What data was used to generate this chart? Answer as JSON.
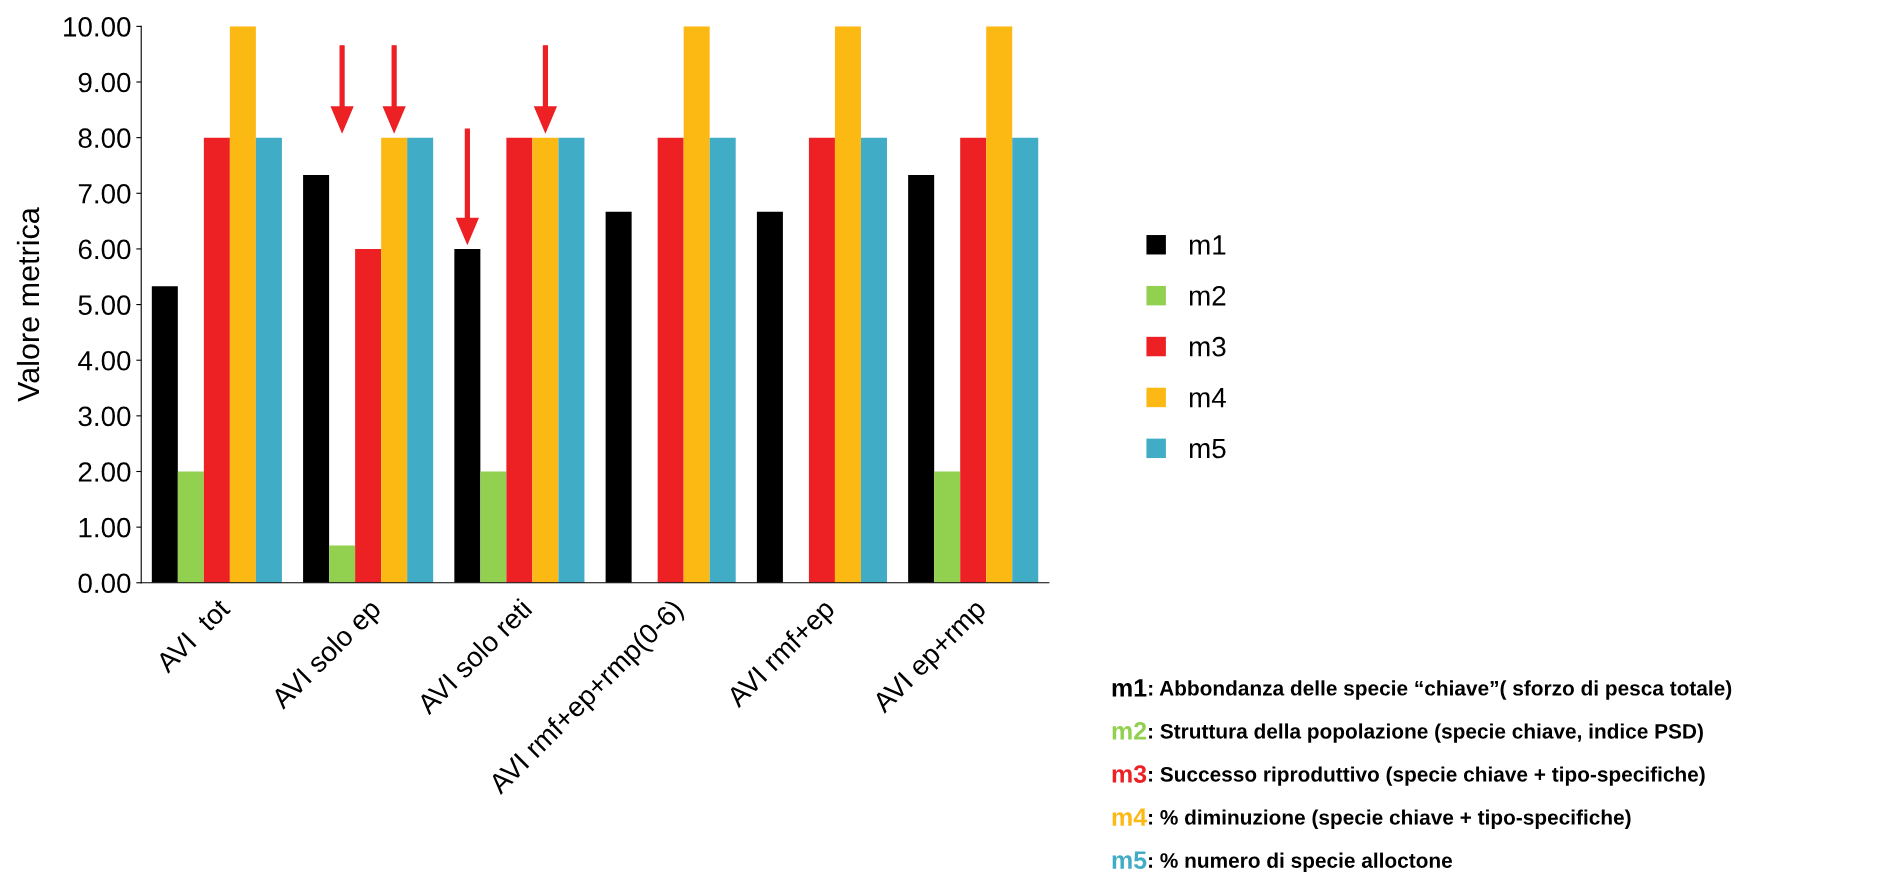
{
  "chart_data": {
    "type": "bar",
    "ylabel": "Valore metrica",
    "categories": [
      "AVI  tot",
      "AVI solo ep",
      "AVI solo reti",
      "AVI rmf+ep+rmp(0-6)",
      "AVI rmf+ep",
      "AVI ep+rmp"
    ],
    "series": [
      {
        "name": "m1",
        "color": "#000000",
        "values": [
          5.33,
          7.33,
          6.0,
          6.67,
          6.67,
          7.33
        ]
      },
      {
        "name": "m2",
        "color": "#92d050",
        "values": [
          2.0,
          0.67,
          2.0,
          0,
          0,
          2.0
        ]
      },
      {
        "name": "m3",
        "color": "#ed2024",
        "values": [
          8,
          6,
          8,
          8,
          8,
          8
        ]
      },
      {
        "name": "m4",
        "color": "#fdb913",
        "values": [
          10,
          8,
          8,
          10,
          10,
          10
        ]
      },
      {
        "name": "m5",
        "color": "#40acc6",
        "values": [
          8,
          8,
          8,
          8,
          8,
          8
        ]
      }
    ],
    "ylim": [
      0,
      10
    ],
    "yticks": [
      {
        "value": 0,
        "label": "0.00"
      },
      {
        "value": 1,
        "label": "1.00"
      },
      {
        "value": 2,
        "label": "2.00"
      },
      {
        "value": 3,
        "label": "3.00"
      },
      {
        "value": 4,
        "label": "4.00"
      },
      {
        "value": 5,
        "label": "5.00"
      },
      {
        "value": 6,
        "label": "6.00"
      },
      {
        "value": 7,
        "label": "7.00"
      },
      {
        "value": 8,
        "label": "8.00"
      },
      {
        "value": 9,
        "label": "9.00"
      },
      {
        "value": 10,
        "label": "10.00"
      }
    ],
    "grid": false,
    "legend": "right",
    "annotations": [
      "m1: Abbondanza delle specie “chiave”( sforzo di pesca totale)",
      "m2: Struttura della popolazione (specie chiave, indice PSD)",
      "m3: Successo riproduttivo (specie chiave + tipo-specifiche)",
      "m4: % diminuzione (specie chiave + tipo-specifiche)",
      "m5: % numero di specie alloctone"
    ]
  }
}
